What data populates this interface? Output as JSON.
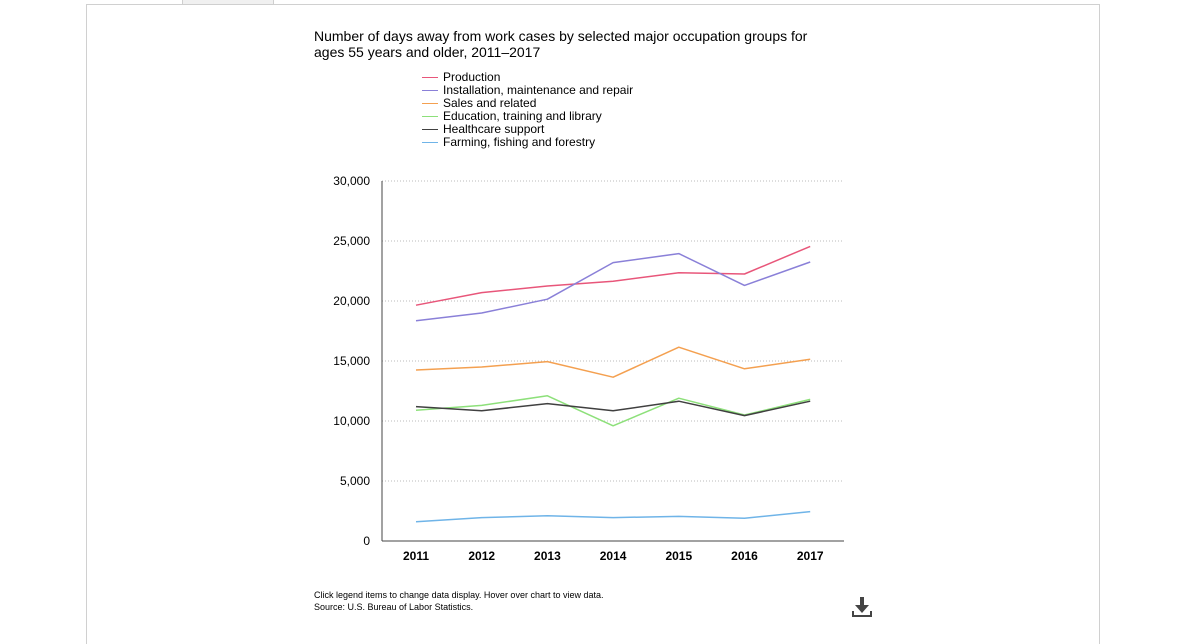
{
  "chart_data": {
    "type": "line",
    "title": "Number of days away from work cases by selected major occupation groups for\nages 55 years and older, 2011–2017",
    "x": [
      "2011",
      "2012",
      "2013",
      "2014",
      "2015",
      "2016",
      "2017"
    ],
    "ylim": [
      0,
      30000
    ],
    "yticks": [
      "0",
      "5,000",
      "10,000",
      "15,000",
      "20,000",
      "25,000",
      "30,000"
    ],
    "ytick_values": [
      0,
      5000,
      10000,
      15000,
      20000,
      25000,
      30000
    ],
    "grid": true,
    "legend_position": "top",
    "series": [
      {
        "name": "Production",
        "color": "#e8567a",
        "values": [
          19650,
          20700,
          21250,
          21650,
          22350,
          22250,
          24550
        ]
      },
      {
        "name": "Installation, maintenance and repair",
        "color": "#8a80d8",
        "values": [
          18350,
          19000,
          20150,
          23200,
          23950,
          21300,
          23250
        ]
      },
      {
        "name": "Sales and related",
        "color": "#f4a050",
        "values": [
          14250,
          14500,
          14950,
          13650,
          16150,
          14350,
          15150
        ]
      },
      {
        "name": "Education, training and library",
        "color": "#8de07a",
        "values": [
          10900,
          11300,
          12100,
          9600,
          11900,
          10500,
          11800
        ]
      },
      {
        "name": "Healthcare support",
        "color": "#404040",
        "values": [
          11200,
          10850,
          11450,
          10850,
          11650,
          10450,
          11650
        ]
      },
      {
        "name": "Farming, fishing and forestry",
        "color": "#6fb4e8",
        "values": [
          1600,
          1950,
          2100,
          1950,
          2050,
          1900,
          2450
        ]
      }
    ]
  },
  "footer": {
    "note": "Click legend items to change data display. Hover over chart to view data.",
    "source": "Source: U.S. Bureau of Labor Statistics."
  },
  "download_icon": "download-icon"
}
